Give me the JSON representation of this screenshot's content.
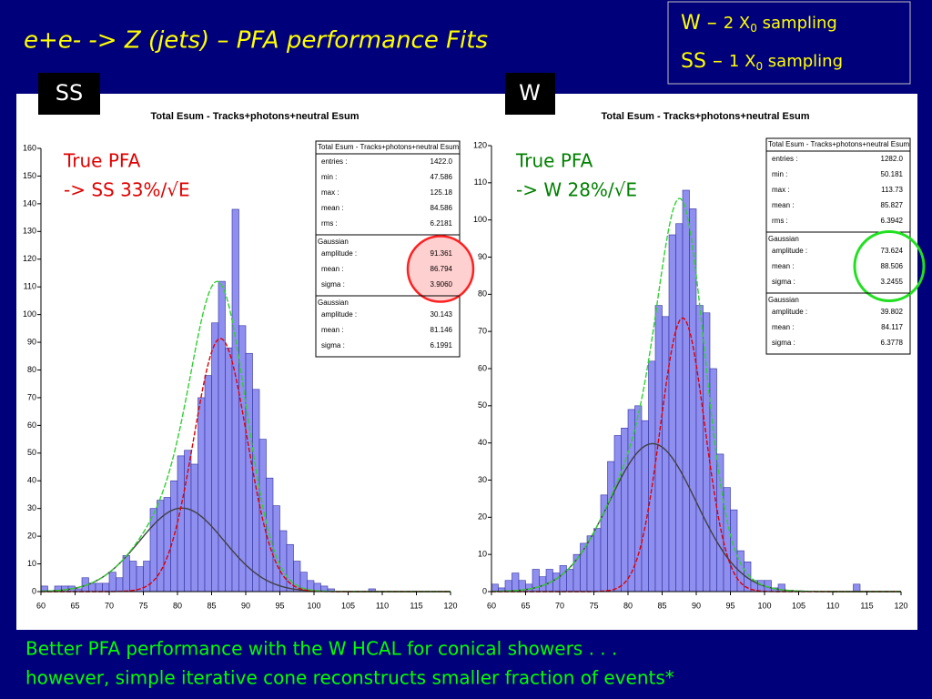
{
  "slide": {
    "title": "e+e- -> Z (jets) – PFA performance Fits",
    "legend": [
      {
        "lead": "W – ",
        "num": "2 X",
        "sub": "0",
        "tail": " sampling"
      },
      {
        "lead": "SS – ",
        "num": "1 X",
        "sub": "0",
        "tail": " sampling"
      }
    ],
    "tags": [
      "SS",
      "W"
    ],
    "footer": [
      "Better PFA performance with the W HCAL for conical showers . . .",
      "however, simple iterative cone reconstructs smaller fraction of events*"
    ]
  },
  "chart_data": [
    {
      "type": "histogram",
      "title": "Total Esum - Tracks+photons+neutral Esum",
      "color": "#8f8fef",
      "annotations": [
        "True PFA",
        "-> SS 33%/√E"
      ],
      "annotation_color": "#e00000",
      "bins": [
        60,
        61,
        62,
        63,
        64,
        65,
        66,
        67,
        68,
        69,
        70,
        71,
        72,
        73,
        74,
        75,
        76,
        77,
        78,
        79,
        80,
        81,
        82,
        83,
        84,
        85,
        86,
        87,
        88,
        89,
        90,
        91,
        92,
        93,
        94,
        95,
        96,
        97,
        98,
        99,
        100,
        101,
        102,
        103,
        104,
        105,
        106,
        107,
        108,
        109,
        110,
        111,
        112,
        113,
        114,
        115,
        116,
        117,
        118,
        119,
        120
      ],
      "counts": [
        2,
        0,
        2,
        2,
        2,
        1,
        5,
        3,
        3,
        3,
        7,
        5,
        13,
        11,
        9,
        11,
        30,
        33,
        34,
        40,
        49,
        51,
        46,
        70,
        78,
        97,
        112,
        88,
        138,
        96,
        86,
        73,
        55,
        41,
        31,
        22,
        17,
        11,
        7,
        4,
        3,
        2,
        1,
        0,
        0,
        0,
        0,
        0,
        1,
        0,
        0,
        0,
        0,
        0,
        0,
        0,
        0,
        0,
        0,
        0
      ],
      "xlim": [
        60,
        120
      ],
      "ylim": [
        0,
        160
      ],
      "xticks": [
        60,
        65,
        70,
        75,
        80,
        85,
        90,
        95,
        100,
        105,
        110,
        115,
        120
      ],
      "yticks": [
        0,
        10,
        20,
        30,
        40,
        50,
        60,
        70,
        80,
        90,
        100,
        110,
        120,
        130,
        140,
        150,
        160
      ],
      "highlight": "red",
      "stats": {
        "title": "Total Esum - Tracks+photons+neutral Esum",
        "summary": [
          {
            "name": "entries :",
            "label": "1422.0"
          },
          {
            "name": "min :",
            "label": "47.586"
          },
          {
            "name": "max :",
            "label": "125.18"
          },
          {
            "name": "mean :",
            "label": "84.586"
          },
          {
            "name": "rms :",
            "label": "6.2181"
          }
        ],
        "fits": [
          {
            "title": "Gaussian",
            "rows": [
              {
                "name": "amplitude :",
                "value": 91.361
              },
              {
                "name": "mean :",
                "value": 86.794
              },
              {
                "name": "sigma :",
                "value": 3.906,
                "label": "3.9060"
              }
            ]
          },
          {
            "title": "Gaussian",
            "rows": [
              {
                "name": "amplitude :",
                "value": 30.143
              },
              {
                "name": "mean :",
                "value": 81.146
              },
              {
                "name": "sigma :",
                "value": 6.1991
              }
            ]
          }
        ]
      }
    },
    {
      "type": "histogram",
      "title": "Total Esum - Tracks+photons+neutral Esum",
      "color": "#8f8fef",
      "annotations": [
        "True PFA",
        "-> W 28%/√E"
      ],
      "annotation_color": "#008000",
      "bins": [
        60,
        61,
        62,
        63,
        64,
        65,
        66,
        67,
        68,
        69,
        70,
        71,
        72,
        73,
        74,
        75,
        76,
        77,
        78,
        79,
        80,
        81,
        82,
        83,
        84,
        85,
        86,
        87,
        88,
        89,
        90,
        91,
        92,
        93,
        94,
        95,
        96,
        97,
        98,
        99,
        100,
        101,
        102,
        103,
        104,
        105,
        106,
        107,
        108,
        109,
        110,
        111,
        112,
        113,
        114,
        115,
        116,
        117,
        118,
        119,
        120
      ],
      "counts": [
        2,
        1,
        3,
        5,
        3,
        2,
        6,
        4,
        6,
        5,
        7,
        6,
        10,
        13,
        15,
        17,
        26,
        35,
        42,
        44,
        49,
        50,
        46,
        62,
        77,
        74,
        96,
        99,
        108,
        103,
        77,
        75,
        60,
        37,
        28,
        22,
        11,
        8,
        3,
        3,
        3,
        1,
        2,
        0,
        0,
        0,
        0,
        0,
        0,
        0,
        0,
        0,
        0,
        2,
        0,
        0,
        0,
        0,
        0,
        0
      ],
      "xlim": [
        60,
        120
      ],
      "ylim": [
        0,
        120
      ],
      "xticks": [
        60,
        65,
        70,
        75,
        80,
        85,
        90,
        95,
        100,
        105,
        110,
        115,
        120
      ],
      "yticks": [
        0,
        10,
        20,
        30,
        40,
        50,
        60,
        70,
        80,
        90,
        100,
        110,
        120
      ],
      "highlight": "green",
      "stats": {
        "title": "Total Esum - Tracks+photons+neutral Esum",
        "summary": [
          {
            "name": "entries :",
            "label": "1282.0"
          },
          {
            "name": "min :",
            "label": "50.181"
          },
          {
            "name": "max :",
            "label": "113.73"
          },
          {
            "name": "mean :",
            "label": "85.827"
          },
          {
            "name": "rms :",
            "label": "6.3942"
          }
        ],
        "fits": [
          {
            "title": "Gaussian",
            "rows": [
              {
                "name": "amplitude :",
                "value": 73.624
              },
              {
                "name": "mean :",
                "value": 88.506
              },
              {
                "name": "sigma :",
                "value": 3.2455
              }
            ]
          },
          {
            "title": "Gaussian",
            "rows": [
              {
                "name": "amplitude :",
                "value": 39.802
              },
              {
                "name": "mean :",
                "value": 84.117
              },
              {
                "name": "sigma :",
                "value": 6.3778
              }
            ]
          }
        ]
      }
    }
  ]
}
